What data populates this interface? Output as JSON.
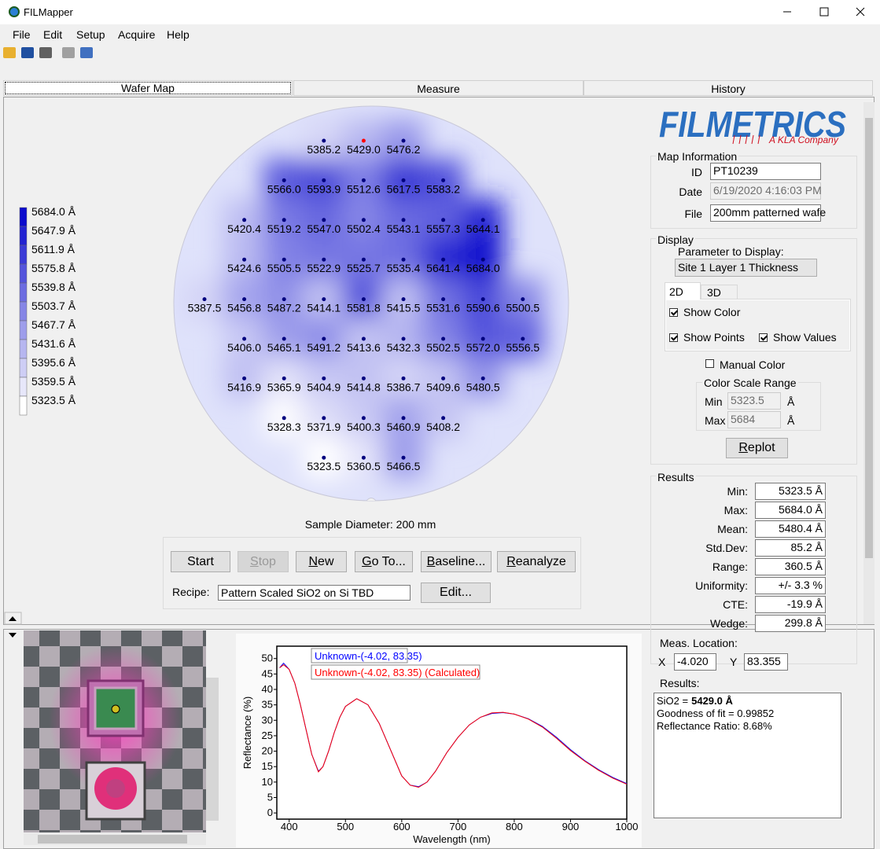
{
  "window": {
    "title": "FILMapper"
  },
  "menu": [
    "File",
    "Edit",
    "Setup",
    "Acquire",
    "Help"
  ],
  "tabs": [
    "Wafer Map",
    "Measure",
    "History"
  ],
  "color_scale": [
    "5684.0 Å",
    "5647.9 Å",
    "5611.9 Å",
    "5575.8 Å",
    "5539.8 Å",
    "5503.7 Å",
    "5467.7 Å",
    "5431.6 Å",
    "5395.6 Å",
    "5359.5 Å",
    "5323.5 Å"
  ],
  "wafer_rows": [
    [
      "5385.2",
      "5429.0",
      "5476.2"
    ],
    [
      "5566.0",
      "5593.9",
      "5512.6",
      "5617.5",
      "5583.2"
    ],
    [
      "5420.4",
      "5519.2",
      "5547.0",
      "5502.4",
      "5543.1",
      "5557.3",
      "5644.1"
    ],
    [
      "5424.6",
      "5505.5",
      "5522.9",
      "5525.7",
      "5535.4",
      "5641.4",
      "5684.0"
    ],
    [
      "5387.5",
      "5456.8",
      "5487.2",
      "5414.1",
      "5581.8",
      "5415.5",
      "5531.6",
      "5590.6",
      "5500.5"
    ],
    [
      "5406.0",
      "5465.1",
      "5491.2",
      "5413.6",
      "5432.3",
      "5502.5",
      "5572.0",
      "5556.5"
    ],
    [
      "5416.9",
      "5365.9",
      "5404.9",
      "5414.8",
      "5386.7",
      "5409.6",
      "5480.5"
    ],
    [
      "5328.3",
      "5371.9",
      "5400.3",
      "5460.9",
      "5408.2"
    ],
    [
      "5323.5",
      "5360.5",
      "5466.5"
    ]
  ],
  "sample_diameter": "Sample Diameter: 200 mm",
  "buttons": [
    "Start",
    "Stop",
    "New",
    "Go To...",
    "Baseline...",
    "Reanalyze"
  ],
  "recipe": {
    "label": "Recipe:",
    "value": "Pattern Scaled SiO2 on Si TBD",
    "edit": "Edit..."
  },
  "logo": {
    "name": "FILMETRICS",
    "tagline": "A KLA Company"
  },
  "map_info": {
    "title": "Map Information",
    "fields": [
      {
        "label": "ID",
        "value": "PT10239"
      },
      {
        "label": "Date",
        "value": "6/19/2020 4:16:03 PM"
      },
      {
        "label": "File",
        "value": "200mm patterned wafe"
      }
    ]
  },
  "display": {
    "title": "Display",
    "parameter_label": "Parameter to Display:",
    "parameter": "Site 1 Layer 1 Thickness",
    "view_tabs": [
      "2D",
      "3D"
    ],
    "checkboxes": [
      {
        "label": "Show Color",
        "checked": true
      },
      {
        "label": "Show Points",
        "checked": true
      },
      {
        "label": "Show Values",
        "checked": true
      }
    ],
    "manual_color": {
      "label": "Manual Color",
      "checked": false
    },
    "range_title": "Color Scale Range",
    "range": [
      {
        "label": "Min",
        "value": "5323.5",
        "unit": "Å"
      },
      {
        "label": "Max",
        "value": "5684",
        "unit": "Å"
      }
    ],
    "replot": "Replot"
  },
  "results": {
    "title": "Results",
    "rows": [
      {
        "label": "Min:",
        "value": "5323.5 Å"
      },
      {
        "label": "Max:",
        "value": "5684.0 Å"
      },
      {
        "label": "Mean:",
        "value": "5480.4 Å"
      },
      {
        "label": "Std.Dev:",
        "value": "85.2 Å"
      },
      {
        "label": "Range:",
        "value": "360.5 Å"
      },
      {
        "label": "Uniformity:",
        "value": "+/- 3.3 %"
      },
      {
        "label": "CTE:",
        "value": "-19.9 Å"
      },
      {
        "label": "Wedge:",
        "value": "299.8 Å"
      }
    ]
  },
  "chart_data": {
    "type": "line",
    "ylabel": "Reflectance (%)",
    "xlabel": "Wavelength (nm)",
    "xlim": [
      378,
      1000
    ],
    "ylim": [
      -2,
      54
    ],
    "xticks": [
      400,
      500,
      600,
      700,
      800,
      900,
      1000
    ],
    "yticks": [
      0,
      5,
      10,
      15,
      20,
      25,
      30,
      35,
      40,
      45,
      50
    ],
    "x": [
      383,
      390,
      400,
      410,
      420,
      430,
      440,
      452,
      460,
      470,
      480,
      490,
      500,
      520,
      540,
      560,
      580,
      600,
      615,
      630,
      645,
      660,
      680,
      700,
      720,
      740,
      760,
      780,
      800,
      825,
      850,
      875,
      900,
      925,
      950,
      975,
      1000
    ],
    "series": [
      {
        "name": "Unknown-(-4.02, 83.35)",
        "color": "#0000ff",
        "values": [
          47,
          48.5,
          46.5,
          42,
          35,
          27,
          19,
          13.5,
          15,
          20,
          26,
          31,
          34.5,
          37,
          35,
          29,
          20.5,
          12,
          9,
          8.5,
          10,
          13.5,
          19.5,
          24.5,
          28.5,
          31,
          32.2,
          32.5,
          32,
          30.5,
          28,
          24.5,
          20.5,
          17,
          14,
          11.5,
          9.5
        ]
      },
      {
        "name": "Unknown-(-4.02, 83.35) (Calculated)",
        "color": "#ff0000",
        "values": [
          47,
          48,
          46.5,
          42,
          35,
          27,
          19,
          13.3,
          15,
          20,
          26,
          31,
          34.5,
          37,
          35,
          29,
          20.5,
          12,
          9,
          8.3,
          10,
          13.5,
          19.5,
          24.5,
          28.5,
          31,
          32.4,
          32.6,
          32,
          30.4,
          27.8,
          24.2,
          20.2,
          16.8,
          13.8,
          11.3,
          9.3
        ]
      }
    ]
  },
  "measurement": {
    "location_title": "Meas. Location:",
    "x_label": "X",
    "x": "-4.020",
    "y_label": "Y",
    "y": "83.355",
    "results_title": "Results:",
    "fit": {
      "label": "SiO2 =",
      "value": "5429.0 Å"
    },
    "lines": [
      "Goodness of fit = 0.99852",
      "Reflectance Ratio: 8.68%"
    ]
  }
}
